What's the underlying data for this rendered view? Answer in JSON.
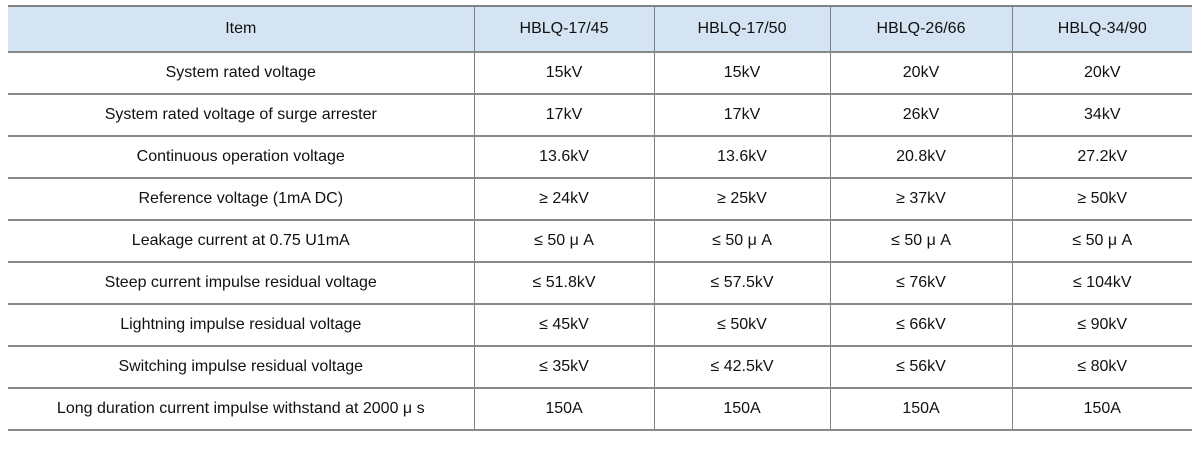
{
  "table": {
    "columns": [
      "Item",
      "HBLQ-17/45",
      "HBLQ-17/50",
      "HBLQ-26/66",
      "HBLQ-34/90"
    ],
    "rows": [
      {
        "item": "System rated voltage",
        "values": [
          "15kV",
          "15kV",
          "20kV",
          "20kV"
        ]
      },
      {
        "item": "System rated voltage of surge arrester",
        "values": [
          "17kV",
          "17kV",
          "26kV",
          "34kV"
        ]
      },
      {
        "item": "Continuous operation voltage",
        "values": [
          "13.6kV",
          "13.6kV",
          "20.8kV",
          "27.2kV"
        ]
      },
      {
        "item": "Reference voltage (1mA DC)",
        "values": [
          "≥ 24kV",
          "≥ 25kV",
          "≥ 37kV",
          "≥ 50kV"
        ]
      },
      {
        "item": "Leakage current at 0.75 U1mA",
        "values": [
          "≤ 50 μ A",
          "≤ 50 μ A",
          "≤ 50 μ A",
          "≤ 50 μ A"
        ]
      },
      {
        "item": "Steep current impulse residual voltage",
        "values": [
          "≤ 51.8kV",
          "≤ 57.5kV",
          "≤ 76kV",
          "≤ 104kV"
        ]
      },
      {
        "item": "Lightning impulse residual voltage",
        "values": [
          "≤ 45kV",
          "≤ 50kV",
          "≤ 66kV",
          "≤ 90kV"
        ]
      },
      {
        "item": "Switching impulse residual voltage",
        "values": [
          "≤ 35kV",
          "≤ 42.5kV",
          "≤ 56kV",
          "≤ 80kV"
        ]
      },
      {
        "item": "Long duration current impulse withstand at 2000 μ s",
        "values": [
          "150A",
          "150A",
          "150A",
          "150A"
        ]
      }
    ],
    "colors": {
      "header_bg": "#d5e4f2",
      "border": "#7f7f7f",
      "text": "#111111"
    }
  }
}
